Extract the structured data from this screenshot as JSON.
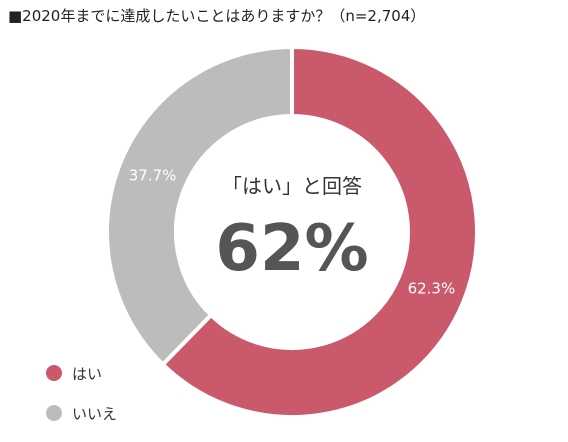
{
  "title": "■2020年までに達成したいことはありますか？（n=2,704）",
  "center": {
    "caption": "「はい」と回答",
    "value": "62%"
  },
  "chart_data": {
    "type": "pie",
    "title": "■2020年までに達成したいことはありますか？（n=2,704）",
    "categories": [
      "はい",
      "いいえ"
    ],
    "values": [
      62.3,
      37.7
    ],
    "value_labels": [
      "62.3%",
      "37.7%"
    ],
    "colors": [
      "#c9596b",
      "#bdbcbb"
    ],
    "legend_position": "bottom-left"
  }
}
